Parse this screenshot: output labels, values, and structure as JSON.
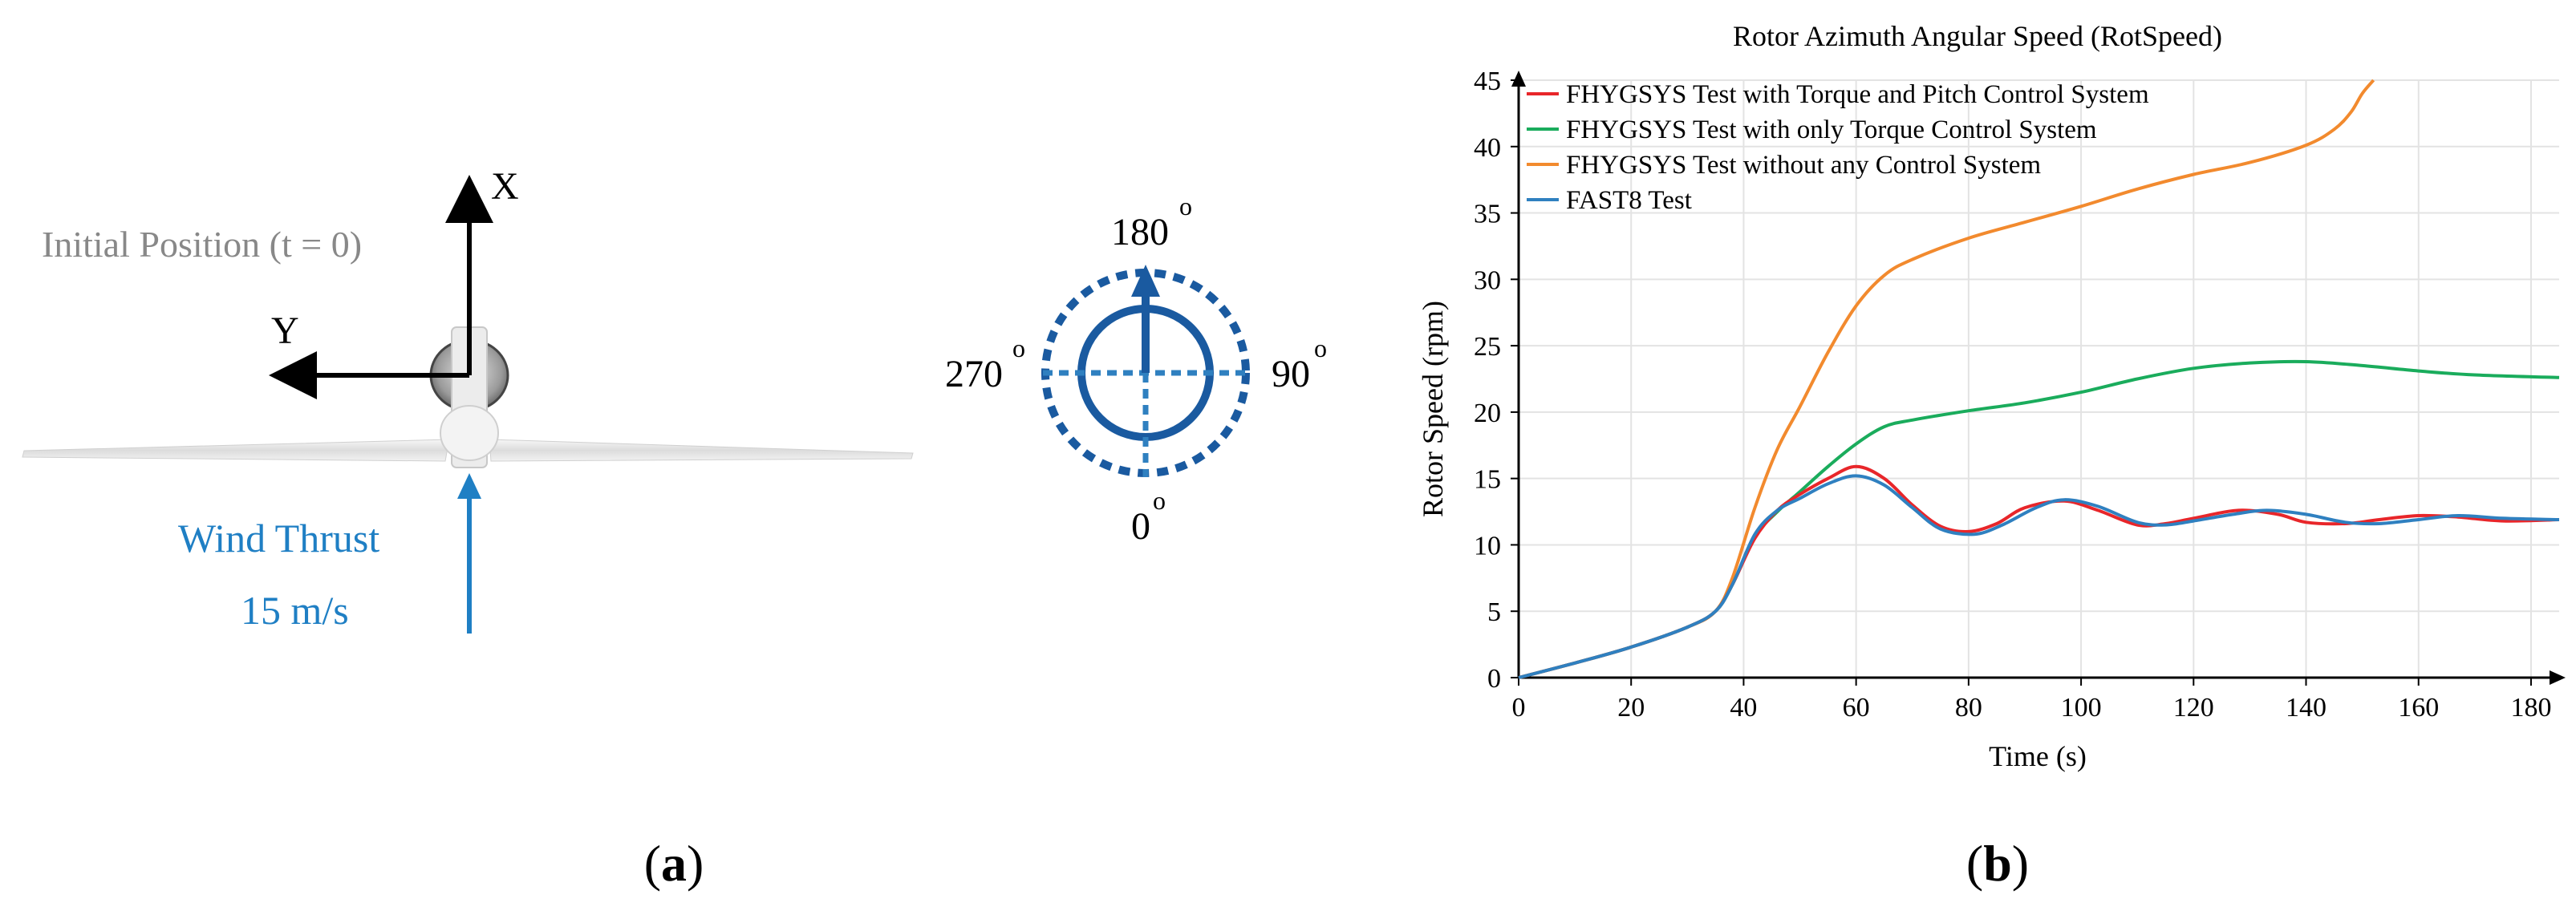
{
  "panel_a": {
    "label_prefix": "(",
    "label_letter": "a",
    "label_suffix": ")",
    "axis_x_label": "X",
    "axis_y_label": "Y",
    "initial_position": "Initial Position (t = 0)",
    "wind_label": "Wind Thrust",
    "wind_speed": "15 m/s",
    "azimuth": {
      "top": "180",
      "right": "90",
      "left": "270",
      "bottom": "0",
      "degree_mark": "o"
    },
    "colors": {
      "wind": "#1f7fc4",
      "azimuth": "#1a5aa0",
      "initial_position": "#888888"
    }
  },
  "panel_b": {
    "label_prefix": "(",
    "label_letter": "b",
    "label_suffix": ")"
  },
  "chart_data": {
    "type": "line",
    "title": "Rotor Azimuth Angular Speed (RotSpeed)",
    "xlabel": "Time (s)",
    "ylabel": "Rotor Speed (rpm)",
    "xlim": [
      0,
      185
    ],
    "ylim": [
      0,
      45
    ],
    "xticks": [
      0,
      20,
      40,
      60,
      80,
      100,
      120,
      140,
      160,
      180
    ],
    "yticks": [
      0,
      5,
      10,
      15,
      20,
      25,
      30,
      35,
      40,
      45
    ],
    "grid": true,
    "legend_position": "top-left",
    "series": [
      {
        "name": "FHYGSYS Test with Torque and Pitch Control System",
        "color": "#e8262a",
        "x": [
          0,
          10,
          20,
          30,
          35,
          38,
          42,
          46,
          50,
          55,
          60,
          65,
          70,
          75,
          80,
          85,
          90,
          97,
          103,
          110,
          115,
          120,
          128,
          135,
          140,
          147,
          153,
          160,
          167,
          175,
          185
        ],
        "y": [
          0,
          1.1,
          2.3,
          3.8,
          5.0,
          7.0,
          10.5,
          12.6,
          13.8,
          15.0,
          15.9,
          15.0,
          13.0,
          11.4,
          11.0,
          11.6,
          12.8,
          13.3,
          12.6,
          11.5,
          11.6,
          12.0,
          12.6,
          12.3,
          11.7,
          11.6,
          11.9,
          12.2,
          12.1,
          11.8,
          11.9
        ]
      },
      {
        "name": "FHYGSYS Test with only Torque Control System",
        "color": "#1aac5c",
        "x": [
          0,
          10,
          20,
          30,
          35,
          38,
          42,
          46,
          50,
          55,
          60,
          65,
          70,
          80,
          90,
          100,
          110,
          120,
          130,
          140,
          150,
          160,
          170,
          185
        ],
        "y": [
          0,
          1.1,
          2.3,
          3.8,
          5.0,
          7.0,
          10.6,
          12.5,
          14.0,
          15.9,
          17.6,
          18.9,
          19.4,
          20.1,
          20.7,
          21.5,
          22.5,
          23.3,
          23.7,
          23.8,
          23.5,
          23.1,
          22.8,
          22.6
        ]
      },
      {
        "name": "FHYGSYS Test without any Control System",
        "color": "#f28a2e",
        "x": [
          0,
          10,
          20,
          30,
          35,
          38,
          42,
          46,
          50,
          55,
          60,
          65,
          70,
          80,
          90,
          100,
          110,
          120,
          130,
          140,
          145,
          148,
          150,
          152
        ],
        "y": [
          0,
          1.1,
          2.3,
          3.8,
          5.0,
          7.5,
          12.8,
          17.2,
          20.4,
          24.5,
          28.0,
          30.3,
          31.5,
          33.1,
          34.3,
          35.5,
          36.8,
          37.9,
          38.8,
          40.1,
          41.3,
          42.6,
          44.0,
          45.0
        ]
      },
      {
        "name": "FAST8 Test",
        "color": "#2f80c0",
        "x": [
          0,
          10,
          20,
          30,
          35,
          38,
          42,
          46,
          50,
          55,
          60,
          65,
          70,
          75,
          81,
          86,
          92,
          97,
          103,
          110,
          115,
          120,
          127,
          133,
          140,
          147,
          153,
          160,
          167,
          175,
          185
        ],
        "y": [
          0,
          1.1,
          2.3,
          3.8,
          5.0,
          7.0,
          10.8,
          12.6,
          13.5,
          14.6,
          15.2,
          14.5,
          12.8,
          11.2,
          10.8,
          11.5,
          12.8,
          13.4,
          12.9,
          11.7,
          11.5,
          11.8,
          12.3,
          12.6,
          12.3,
          11.7,
          11.6,
          11.9,
          12.2,
          12.0,
          11.9
        ]
      }
    ]
  }
}
